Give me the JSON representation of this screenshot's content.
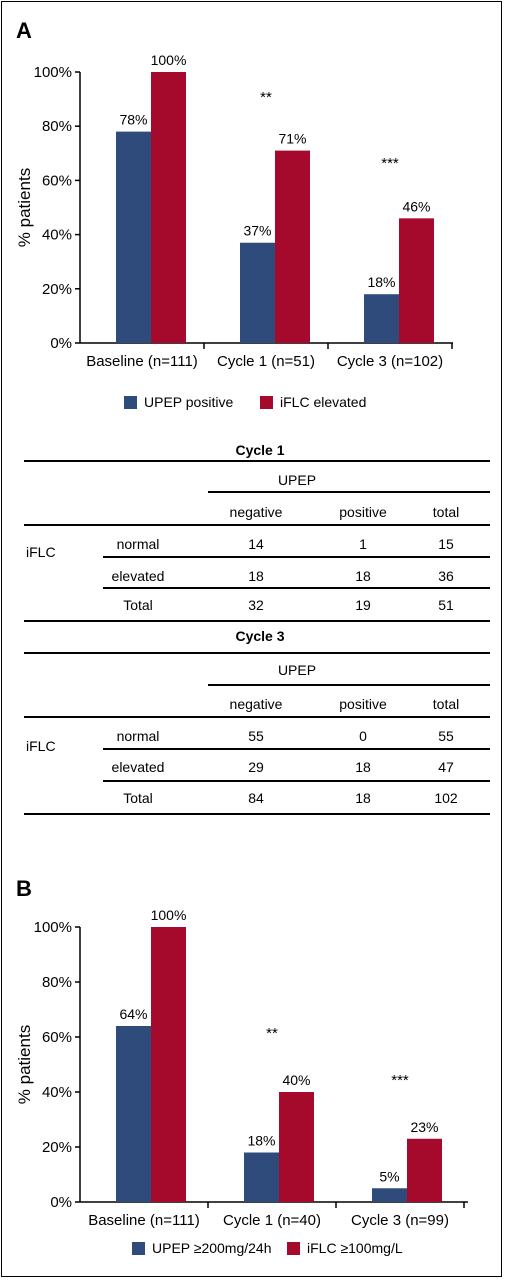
{
  "panels": {
    "a_label": "A",
    "b_label": "B"
  },
  "chart_data": [
    {
      "type": "bar",
      "ylabel": "% patients",
      "ylim": [
        0,
        100
      ],
      "yticks": [
        "0%",
        "20%",
        "40%",
        "60%",
        "80%",
        "100%"
      ],
      "categories": [
        "Baseline (n=111)",
        "Cycle 1 (n=51)",
        "Cycle 3 (n=102)"
      ],
      "series": [
        {
          "name": "UPEP positive",
          "color": "#2E4B7C",
          "values": [
            78,
            37,
            18
          ],
          "labels": [
            "78%",
            "37%",
            "18%"
          ]
        },
        {
          "name": "iFLC elevated",
          "color": "#A50A2D",
          "values": [
            100,
            71,
            46
          ],
          "labels": [
            "100%",
            "71%",
            "46%"
          ]
        }
      ],
      "annotations": [
        "",
        "**",
        "***"
      ],
      "legend": "bottom"
    },
    {
      "type": "bar",
      "ylabel": "% patients",
      "ylim": [
        0,
        100
      ],
      "yticks": [
        "0%",
        "20%",
        "40%",
        "60%",
        "80%",
        "100%"
      ],
      "categories": [
        "Baseline (n=111)",
        "Cycle 1 (n=40)",
        "Cycle 3 (n=99)"
      ],
      "series": [
        {
          "name": "UPEP ≥200mg/24h",
          "color": "#2E4B7C",
          "values": [
            64,
            18,
            5
          ],
          "labels": [
            "64%",
            "18%",
            "5%"
          ]
        },
        {
          "name": "iFLC ≥100mg/L",
          "color": "#A50A2D",
          "values": [
            100,
            40,
            23
          ],
          "labels": [
            "100%",
            "40%",
            "23%"
          ]
        }
      ],
      "annotations": [
        "",
        "**",
        "***"
      ],
      "legend": "bottom"
    }
  ],
  "tables": [
    {
      "title": "Cycle 1",
      "col_group": "UPEP",
      "row_group": "iFLC",
      "columns": [
        "negative",
        "positive",
        "total"
      ],
      "rows": [
        {
          "label": "normal",
          "cells": [
            "14",
            "1",
            "15"
          ]
        },
        {
          "label": "elevated",
          "cells": [
            "18",
            "18",
            "36"
          ]
        },
        {
          "label": "Total",
          "cells": [
            "32",
            "19",
            "51"
          ]
        }
      ]
    },
    {
      "title": "Cycle 3",
      "col_group": "UPEP",
      "row_group": "iFLC",
      "columns": [
        "negative",
        "positive",
        "total"
      ],
      "rows": [
        {
          "label": "normal",
          "cells": [
            "55",
            "0",
            "55"
          ]
        },
        {
          "label": "elevated",
          "cells": [
            "29",
            "18",
            "47"
          ]
        },
        {
          "label": "Total",
          "cells": [
            "84",
            "18",
            "102"
          ]
        }
      ]
    }
  ]
}
